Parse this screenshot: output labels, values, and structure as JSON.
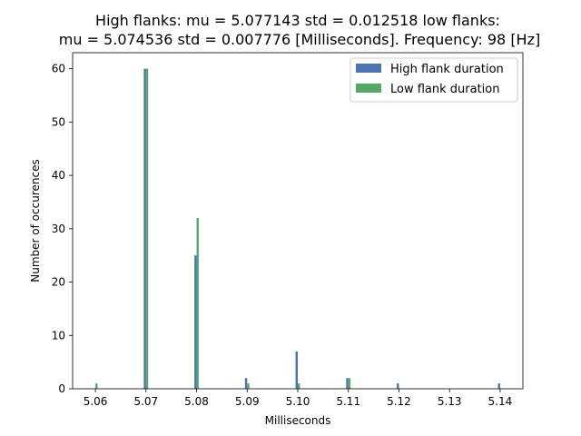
{
  "chart_data": {
    "type": "bar",
    "title_line1": "High flanks: mu = 5.077143  std = 0.012518  low flanks:",
    "title_line2": "mu = 5.074536  std = 0.007776  [Milliseconds]. Frequency: 98 [Hz]",
    "xlabel": "Milliseconds",
    "ylabel": "Number of occurences",
    "xlim": [
      5.0555,
      5.1445
    ],
    "ylim": [
      0,
      63
    ],
    "x_ticks": [
      "5.06",
      "5.07",
      "5.08",
      "5.09",
      "5.10",
      "5.11",
      "5.12",
      "5.13",
      "5.14"
    ],
    "x_tick_values": [
      5.06,
      5.07,
      5.08,
      5.09,
      5.1,
      5.11,
      5.12,
      5.13,
      5.14
    ],
    "y_ticks": [
      "0",
      "10",
      "20",
      "30",
      "40",
      "50",
      "60"
    ],
    "y_tick_values": [
      0,
      10,
      20,
      30,
      40,
      50,
      60
    ],
    "grid": false,
    "legend_position": "top-right",
    "series": [
      {
        "name": "High flank duration",
        "color": "#4c72b0",
        "points": [
          {
            "x": 5.07,
            "y": 60
          },
          {
            "x": 5.08,
            "y": 25
          },
          {
            "x": 5.09,
            "y": 2
          },
          {
            "x": 5.1,
            "y": 7
          },
          {
            "x": 5.11,
            "y": 2
          },
          {
            "x": 5.12,
            "y": 1
          },
          {
            "x": 5.14,
            "y": 1
          }
        ]
      },
      {
        "name": "Low flank duration",
        "color": "#55a868",
        "points": [
          {
            "x": 5.06,
            "y": 1
          },
          {
            "x": 5.07,
            "y": 60
          },
          {
            "x": 5.08,
            "y": 32
          },
          {
            "x": 5.09,
            "y": 1
          },
          {
            "x": 5.1,
            "y": 1
          },
          {
            "x": 5.11,
            "y": 2
          }
        ]
      }
    ]
  }
}
